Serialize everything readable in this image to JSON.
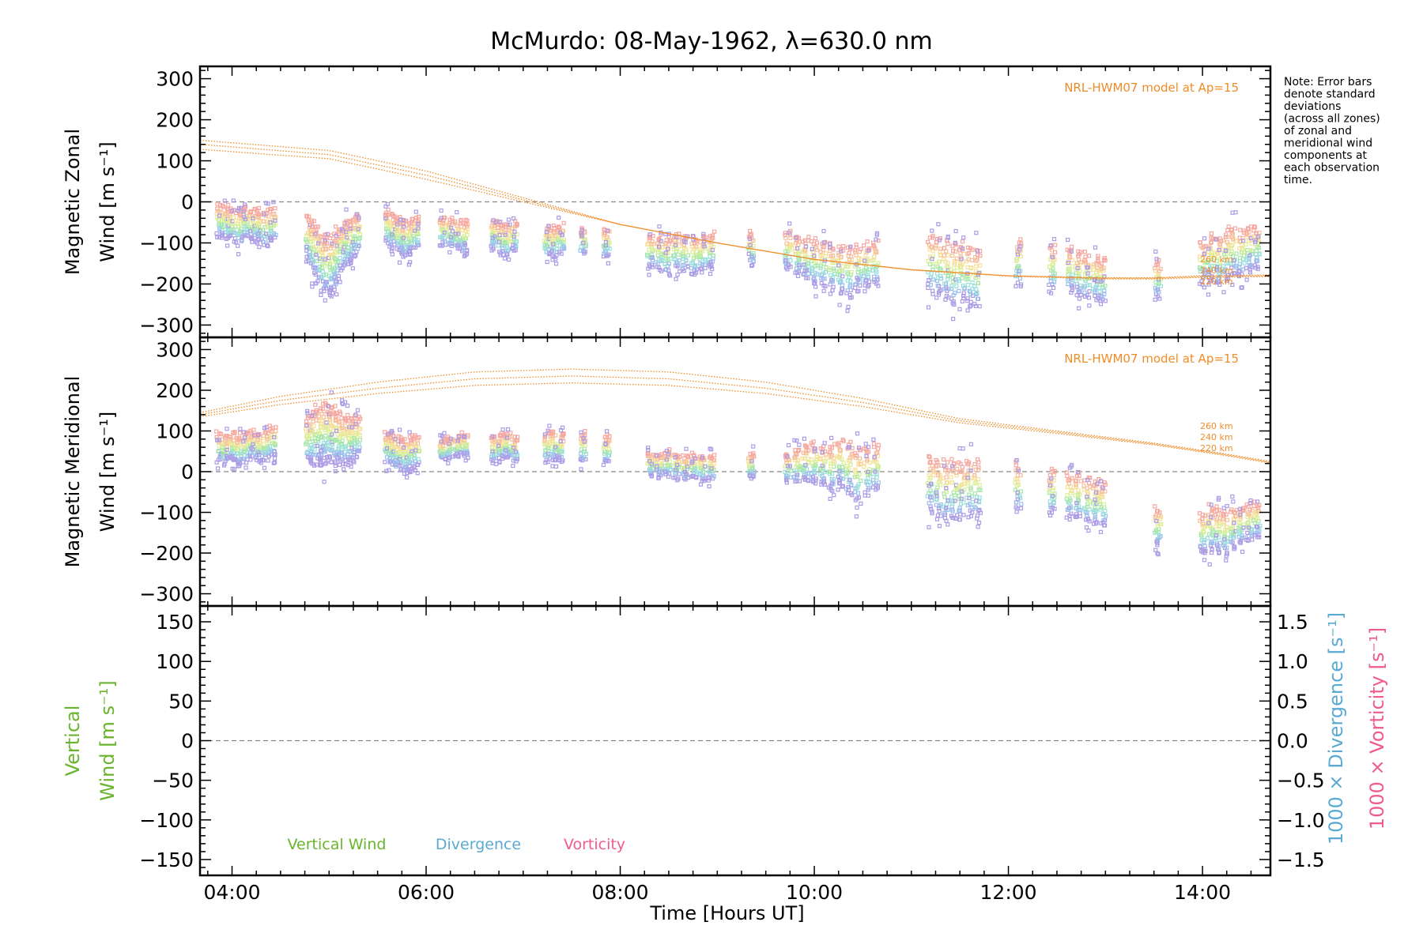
{
  "chart_data": {
    "type": "scatter",
    "title": "McMurdo: 08-May-1962, λ=630.0 nm",
    "xlabel": "Time [Hours UT]",
    "xlim": [
      3.67,
      14.7
    ],
    "x_ticks": [
      4,
      6,
      8,
      10,
      12,
      14
    ],
    "x_tick_labels": [
      "04:00",
      "06:00",
      "08:00",
      "10:00",
      "12:00",
      "14:00"
    ],
    "note": [
      "Note: Error bars",
      "denote standard",
      "deviations",
      "(across all zones)",
      "of zonal and",
      "meridional wind",
      "components at",
      "each observation",
      "time."
    ],
    "colors": {
      "model": "#f08c28",
      "vertical": "#6ab42d",
      "divergence": "#5aaad2",
      "vorticity": "#f05a8c",
      "zero_line": "#888888"
    },
    "panels": [
      {
        "id": "zonal",
        "ylabel_lines": [
          "Magnetic Zonal",
          "Wind [m s⁻¹]"
        ],
        "ylim": [
          -330,
          330
        ],
        "y_ticks": [
          300,
          200,
          100,
          0,
          -100,
          -200,
          -300
        ],
        "y_tick_labels": [
          "300",
          "200",
          "100",
          "0",
          "−100",
          "−200",
          "−300"
        ],
        "model_label": "NRL-HWM07 model at Ap=15",
        "altitude_labels": [
          "260 km",
          "240 km",
          "220 km"
        ],
        "model_curves": [
          {
            "x": [
              3.67,
              5,
              6,
              7,
              8,
              9,
              10,
              11,
              12,
              13,
              13.5,
              14,
              14.7
            ],
            "y": [
              150,
              125,
              75,
              10,
              -55,
              -100,
              -140,
              -165,
              -180,
              -185,
              -185,
              -180,
              -178
            ]
          },
          {
            "x": [
              3.67,
              5,
              6,
              7,
              8,
              9,
              10,
              11,
              12,
              13,
              13.5,
              14,
              14.7
            ],
            "y": [
              140,
              115,
              65,
              5,
              -55,
              -100,
              -140,
              -165,
              -180,
              -186,
              -186,
              -182,
              -180
            ]
          },
          {
            "x": [
              3.67,
              5,
              6,
              7,
              8,
              9,
              10,
              11,
              12,
              13,
              13.5,
              14,
              14.7
            ],
            "y": [
              128,
              105,
              55,
              0,
              -55,
              -100,
              -140,
              -166,
              -181,
              -188,
              -188,
              -184,
              -182
            ]
          }
        ],
        "obs_times": [
          3.87,
          3.94,
          4.0,
          4.07,
          4.14,
          4.21,
          4.28,
          4.35,
          4.42,
          4.79,
          4.84,
          4.89,
          4.94,
          4.99,
          5.04,
          5.09,
          5.14,
          5.19,
          5.24,
          5.29,
          5.6,
          5.66,
          5.72,
          5.78,
          5.84,
          5.9,
          6.17,
          6.25,
          6.33,
          6.4,
          6.7,
          6.77,
          6.84,
          6.91,
          7.25,
          7.32,
          7.39,
          7.62,
          7.86,
          8.31,
          8.4,
          8.49,
          8.58,
          8.67,
          8.76,
          8.85,
          8.94,
          9.35,
          9.73,
          9.82,
          9.91,
          10.0,
          10.09,
          10.18,
          10.27,
          10.36,
          10.45,
          10.54,
          10.63,
          11.2,
          11.28,
          11.36,
          11.44,
          11.52,
          11.6,
          11.68,
          12.1,
          12.45,
          12.63,
          12.72,
          12.81,
          12.9,
          12.97,
          13.54,
          14.0,
          14.08,
          14.16,
          14.24,
          14.32,
          14.4,
          14.48,
          14.56
        ],
        "obs_means": [
          -45,
          -50,
          -55,
          -60,
          -50,
          -55,
          -60,
          -65,
          -55,
          -90,
          -110,
          -130,
          -150,
          -160,
          -150,
          -130,
          -110,
          -100,
          -90,
          -80,
          -60,
          -70,
          -80,
          -90,
          -85,
          -75,
          -70,
          -75,
          -80,
          -85,
          -80,
          -90,
          -95,
          -85,
          -95,
          -100,
          -90,
          -95,
          -100,
          -120,
          -125,
          -130,
          -120,
          -125,
          -130,
          -125,
          -120,
          -115,
          -120,
          -130,
          -140,
          -145,
          -150,
          -160,
          -165,
          -170,
          -160,
          -155,
          -150,
          -150,
          -155,
          -165,
          -175,
          -170,
          -180,
          -185,
          -150,
          -160,
          -165,
          -175,
          -180,
          -185,
          -190,
          -190,
          -150,
          -140,
          -145,
          -130,
          -120,
          -125,
          -115,
          -110
        ],
        "obs_spreads": [
          80,
          80,
          80,
          85,
          80,
          80,
          80,
          85,
          80,
          120,
          130,
          140,
          150,
          150,
          140,
          130,
          120,
          110,
          110,
          100,
          80,
          80,
          85,
          90,
          85,
          80,
          70,
          70,
          75,
          80,
          70,
          75,
          80,
          75,
          70,
          75,
          70,
          60,
          70,
          80,
          85,
          90,
          90,
          90,
          90,
          85,
          85,
          80,
          90,
          95,
          100,
          110,
          110,
          110,
          120,
          120,
          110,
          110,
          110,
          140,
          140,
          150,
          150,
          140,
          140,
          140,
          120,
          110,
          110,
          110,
          110,
          110,
          110,
          90,
          110,
          120,
          120,
          130,
          120,
          110,
          110,
          100
        ]
      },
      {
        "id": "meridional",
        "ylabel_lines": [
          "Magnetic Meridional",
          "Wind [m s⁻¹]"
        ],
        "ylim": [
          -330,
          330
        ],
        "y_ticks": [
          300,
          200,
          100,
          0,
          -100,
          -200,
          -300
        ],
        "y_tick_labels": [
          "300",
          "200",
          "100",
          "0",
          "−100",
          "−200",
          "−300"
        ],
        "model_label": "NRL-HWM07 model at Ap=15",
        "altitude_labels": [
          "260 km",
          "240 km",
          "220 km"
        ],
        "model_curves": [
          {
            "x": [
              3.67,
              4.5,
              5.5,
              6.5,
              7.5,
              8.5,
              9.5,
              10.5,
              11.5,
              12.5,
              13.5,
              14.2,
              14.7
            ],
            "y": [
              145,
              185,
              220,
              245,
              252,
              245,
              220,
              180,
              130,
              100,
              70,
              45,
              25
            ]
          },
          {
            "x": [
              3.67,
              4.5,
              5.5,
              6.5,
              7.5,
              8.5,
              9.5,
              10.5,
              11.5,
              12.5,
              13.5,
              14.2,
              14.7
            ],
            "y": [
              140,
              175,
              205,
              228,
              235,
              228,
              205,
              170,
              125,
              97,
              68,
              43,
              23
            ]
          },
          {
            "x": [
              3.67,
              4.5,
              5.5,
              6.5,
              7.5,
              8.5,
              9.5,
              10.5,
              11.5,
              12.5,
              13.5,
              14.2,
              14.7
            ],
            "y": [
              135,
              165,
              192,
              212,
              218,
              212,
              192,
              160,
              120,
              94,
              66,
              41,
              21
            ]
          }
        ],
        "obs_times": [
          3.87,
          3.94,
          4.0,
          4.07,
          4.14,
          4.21,
          4.28,
          4.35,
          4.42,
          4.79,
          4.84,
          4.89,
          4.94,
          4.99,
          5.04,
          5.09,
          5.14,
          5.19,
          5.24,
          5.29,
          5.6,
          5.66,
          5.72,
          5.78,
          5.84,
          5.9,
          6.17,
          6.25,
          6.33,
          6.4,
          6.7,
          6.77,
          6.84,
          6.91,
          7.25,
          7.32,
          7.39,
          7.62,
          7.86,
          8.31,
          8.4,
          8.49,
          8.58,
          8.67,
          8.76,
          8.85,
          8.94,
          9.35,
          9.73,
          9.82,
          9.91,
          10.0,
          10.09,
          10.18,
          10.27,
          10.36,
          10.45,
          10.54,
          10.63,
          11.2,
          11.28,
          11.36,
          11.44,
          11.52,
          11.6,
          11.68,
          12.1,
          12.45,
          12.63,
          12.72,
          12.81,
          12.9,
          12.97,
          13.54,
          14.0,
          14.08,
          14.16,
          14.24,
          14.32,
          14.4,
          14.48,
          14.56
        ],
        "obs_means": [
          60,
          55,
          60,
          55,
          60,
          65,
          60,
          65,
          75,
          80,
          85,
          90,
          95,
          95,
          90,
          85,
          80,
          75,
          80,
          85,
          60,
          55,
          45,
          40,
          45,
          50,
          55,
          60,
          60,
          65,
          55,
          60,
          65,
          55,
          60,
          65,
          60,
          60,
          55,
          20,
          15,
          20,
          15,
          10,
          15,
          10,
          10,
          15,
          10,
          15,
          20,
          20,
          15,
          10,
          20,
          5,
          -10,
          0,
          10,
          -30,
          -40,
          -50,
          -45,
          -50,
          -40,
          -40,
          -40,
          -50,
          -60,
          -60,
          -70,
          -75,
          -80,
          -135,
          -150,
          -140,
          -145,
          -150,
          -140,
          -130,
          -125,
          -120
        ],
        "obs_spreads": [
          70,
          70,
          70,
          70,
          70,
          70,
          70,
          70,
          80,
          120,
          130,
          140,
          150,
          150,
          140,
          130,
          120,
          120,
          110,
          100,
          80,
          80,
          80,
          80,
          80,
          80,
          50,
          50,
          50,
          55,
          60,
          60,
          60,
          60,
          70,
          70,
          70,
          70,
          70,
          60,
          60,
          60,
          60,
          60,
          60,
          60,
          60,
          60,
          70,
          80,
          90,
          100,
          100,
          110,
          120,
          130,
          130,
          120,
          110,
          140,
          140,
          150,
          150,
          140,
          140,
          140,
          120,
          110,
          110,
          110,
          110,
          110,
          110,
          90,
          100,
          110,
          110,
          110,
          100,
          90,
          90,
          90
        ]
      },
      {
        "id": "vertical",
        "ylabel_lines": [
          "Vertical",
          "Wind [m s⁻¹]"
        ],
        "ylim": [
          -170,
          170
        ],
        "y_ticks": [
          150,
          100,
          50,
          0,
          -50,
          -100,
          -150
        ],
        "y_tick_labels": [
          "150",
          "100",
          "50",
          "0",
          "−50",
          "−100",
          "−150"
        ],
        "right_ticks": [
          1.5,
          1.0,
          0.5,
          0.0,
          -0.5,
          -1.0,
          -1.5
        ],
        "right_tick_labels": [
          "1.5",
          "1.0",
          "0.5",
          "0.0",
          "−0.5",
          "−1.0",
          "−1.5"
        ],
        "right_ylim": [
          -1.7,
          1.7
        ],
        "right_label_divergence": "1000 × Divergence [s⁻¹]",
        "right_label_vorticity": "1000 × Vorticity [s⁻¹]",
        "legend": [
          "Vertical Wind",
          "Divergence",
          "Vorticity"
        ]
      }
    ]
  }
}
